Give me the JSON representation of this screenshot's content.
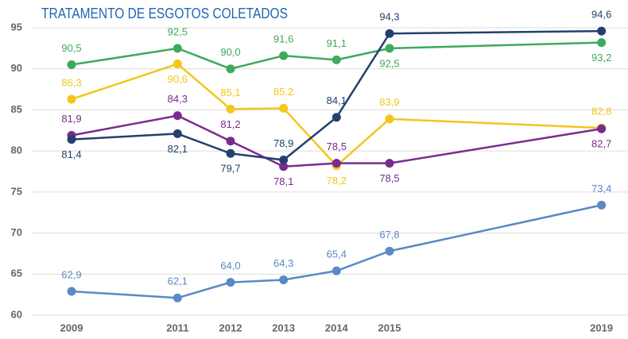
{
  "chart_data": {
    "type": "line",
    "title": "TRATAMENTO DE ESGOTOS COLETADOS",
    "x": [
      2009,
      2011,
      2012,
      2013,
      2014,
      2015,
      2019
    ],
    "xlim": [
      2008.4,
      2019.5
    ],
    "xticks": [
      2009,
      2011,
      2012,
      2013,
      2014,
      2015,
      2019
    ],
    "ylim": [
      60,
      95
    ],
    "yticks": [
      60,
      65,
      70,
      75,
      80,
      85,
      90,
      95
    ],
    "grid": true,
    "series": [
      {
        "color": "#3daa5c",
        "values": [
          90.5,
          92.5,
          90.0,
          91.6,
          91.1,
          92.5,
          93.2
        ],
        "value_labels": [
          "90,5",
          "92,5",
          "90,0",
          "91,6",
          "91,1",
          "92,5",
          "93,2"
        ]
      },
      {
        "color": "#f5c518",
        "values": [
          86.3,
          90.6,
          85.1,
          85.2,
          78.2,
          83.9,
          82.8
        ],
        "value_labels": [
          "86,3",
          "90,6",
          "85,1",
          "85,2",
          "78,2",
          "83,9",
          "82,8"
        ]
      },
      {
        "color": "#7b2a8e",
        "values": [
          81.9,
          84.3,
          81.2,
          78.1,
          78.5,
          78.5,
          82.7
        ],
        "value_labels": [
          "81,9",
          "84,3",
          "81,2",
          "78,1",
          "78,5",
          "78,5",
          "82,7"
        ]
      },
      {
        "color": "#24406e",
        "values": [
          81.4,
          82.1,
          79.7,
          78.9,
          84.1,
          94.3,
          94.6
        ],
        "value_labels": [
          "81,4",
          "82,1",
          "79,7",
          "78,9",
          "84,1",
          "94,3",
          "94,6"
        ]
      },
      {
        "color": "#5b88c6",
        "values": [
          62.9,
          62.1,
          64.0,
          64.3,
          65.4,
          67.8,
          73.4
        ],
        "value_labels": [
          "62,9",
          "62,1",
          "64,0",
          "64,3",
          "65,4",
          "67,8",
          "73,4"
        ]
      }
    ]
  }
}
